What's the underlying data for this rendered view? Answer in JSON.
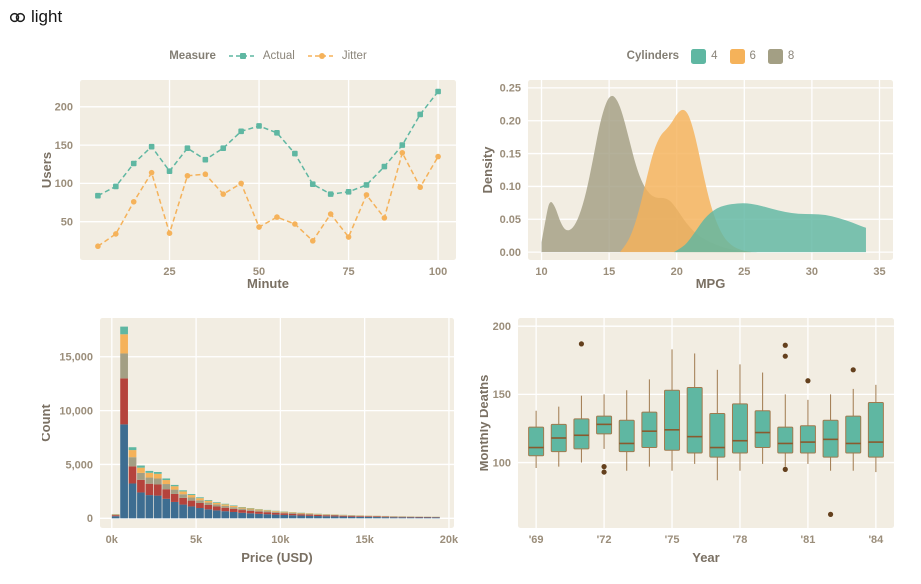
{
  "header": {
    "label": "light",
    "icon": "link-rings-icon"
  },
  "style": {
    "page_bg": "#ffffff",
    "panel": "#f2ede2",
    "grid": "#ffffff",
    "tick": "#9b8e7b",
    "label": "#7a7063",
    "legend_text": "#8b857a"
  },
  "chart_data": [
    {
      "type": "line",
      "title": "Measure",
      "xlabel": "Minute",
      "ylabel": "Users",
      "xlim": [
        0,
        105
      ],
      "ylim": [
        0,
        235
      ],
      "xticks": [
        25,
        50,
        75,
        100
      ],
      "yticks": [
        50,
        100,
        150,
        200
      ],
      "x": [
        5,
        10,
        15,
        20,
        25,
        30,
        35,
        40,
        45,
        50,
        55,
        60,
        65,
        70,
        75,
        80,
        85,
        90,
        95,
        100
      ],
      "series": [
        {
          "name": "Actual",
          "color": "#5fb7a2",
          "marker": "square",
          "values": [
            84,
            96,
            126,
            148,
            116,
            146,
            131,
            146,
            168,
            175,
            166,
            139,
            99,
            86,
            89,
            98,
            122,
            150,
            190,
            220
          ]
        },
        {
          "name": "Jitter",
          "color": "#f5b25a",
          "marker": "circle",
          "values": [
            18,
            34,
            76,
            114,
            35,
            110,
            112,
            86,
            100,
            43,
            56,
            47,
            25,
            60,
            30,
            85,
            55,
            140,
            95,
            135
          ]
        }
      ]
    },
    {
      "type": "density",
      "title": "Cylinders",
      "xlabel": "MPG",
      "ylabel": "Density",
      "xlim": [
        9,
        36
      ],
      "ylim": [
        -0.012,
        0.262
      ],
      "xticks": [
        10,
        15,
        20,
        25,
        30,
        35
      ],
      "yticks": [
        0,
        0.05,
        0.1,
        0.15,
        0.2,
        0.25
      ],
      "ytick_labels": [
        "0.00",
        "0.05",
        "0.10",
        "0.15",
        "0.20",
        "0.25"
      ],
      "series": [
        {
          "name": "4",
          "color": "#5fb7a2",
          "x": [
            19.8,
            20.5,
            21,
            21.5,
            22,
            22.5,
            23,
            23.5,
            24,
            25,
            26,
            27,
            28,
            29,
            30,
            31,
            32,
            33,
            33.6,
            34
          ],
          "y": [
            0,
            0.008,
            0.02,
            0.035,
            0.05,
            0.06,
            0.067,
            0.071,
            0.073,
            0.075,
            0.072,
            0.066,
            0.061,
            0.058,
            0.058,
            0.057,
            0.052,
            0.045,
            0.04,
            0.037
          ]
        },
        {
          "name": "6",
          "color": "#f5b25a",
          "x": [
            15.8,
            16.3,
            16.8,
            17.3,
            17.8,
            18.3,
            18.8,
            19.2,
            19.6,
            20,
            20.4,
            20.8,
            21.2,
            21.6,
            22,
            22.5,
            23,
            23.5,
            24,
            24.5,
            25,
            25.5
          ],
          "y": [
            0,
            0.012,
            0.035,
            0.07,
            0.115,
            0.155,
            0.178,
            0.186,
            0.196,
            0.21,
            0.218,
            0.213,
            0.19,
            0.155,
            0.115,
            0.072,
            0.042,
            0.022,
            0.011,
            0.005,
            0.002,
            0
          ]
        },
        {
          "name": "8",
          "color": "#a39f84",
          "x": [
            10,
            10.3,
            10.6,
            11,
            11.4,
            11.8,
            12.3,
            12.8,
            13.3,
            13.8,
            14.3,
            14.8,
            15.2,
            15.6,
            16,
            16.5,
            17,
            17.5,
            18,
            18.5,
            19,
            19.5,
            20,
            20.5,
            21,
            21.5,
            22,
            23,
            24,
            25,
            26
          ],
          "y": [
            0.015,
            0.05,
            0.08,
            0.07,
            0.045,
            0.032,
            0.035,
            0.055,
            0.09,
            0.14,
            0.195,
            0.23,
            0.24,
            0.232,
            0.21,
            0.17,
            0.13,
            0.103,
            0.088,
            0.082,
            0.083,
            0.079,
            0.066,
            0.05,
            0.037,
            0.027,
            0.02,
            0.01,
            0.004,
            0.001,
            0
          ]
        }
      ]
    },
    {
      "type": "histogram-stacked",
      "xlabel": "Price (USD)",
      "ylabel": "Count",
      "xlim": [
        -700,
        20300
      ],
      "ylim": [
        -900,
        18600
      ],
      "xticks": [
        0,
        5000,
        10000,
        15000,
        20000
      ],
      "xtick_labels": [
        "0k",
        "5k",
        "10k",
        "15k",
        "20k"
      ],
      "yticks": [
        0,
        5000,
        10000,
        15000
      ],
      "ytick_labels": [
        "0",
        "5,000",
        "10,000",
        "15,000"
      ],
      "bin_start": 0,
      "bin_width": 500,
      "totals": [
        400,
        17800,
        6600,
        4900,
        4400,
        4300,
        3700,
        3100,
        2600,
        2250,
        1950,
        1700,
        1500,
        1350,
        1200,
        1050,
        950,
        850,
        780,
        700,
        640,
        580,
        520,
        470,
        430,
        390,
        360,
        330,
        300,
        280,
        260,
        240,
        220,
        200,
        190,
        180,
        170,
        160,
        150
      ],
      "series": [
        {
          "name": "blue",
          "color": "#3d6d91",
          "fraction": 0.49
        },
        {
          "name": "red",
          "color": "#b5433c",
          "fraction": 0.24
        },
        {
          "name": "olive",
          "color": "#a39f84",
          "fraction": 0.13
        },
        {
          "name": "orange",
          "color": "#f5b25a",
          "fraction": 0.1
        },
        {
          "name": "teal",
          "color": "#5fb7a2",
          "fraction": 0.04
        }
      ]
    },
    {
      "type": "box",
      "xlabel": "Year",
      "ylabel": "Monthly Deaths",
      "xlim": [
        1968.2,
        1984.8
      ],
      "ylim": [
        52,
        206
      ],
      "xticks": [
        1969,
        1972,
        1975,
        1978,
        1981,
        1984
      ],
      "xtick_labels": [
        "'69",
        "'72",
        "'75",
        "'78",
        "'81",
        "'84"
      ],
      "yticks": [
        100,
        150,
        200
      ],
      "box_fill": "#5fb7a2",
      "box_stroke": "#a07a4e",
      "median_color": "#8a5a2e",
      "whisker_color": "#a07a4e",
      "outlier_color": "#64401d",
      "items": [
        {
          "year": 1969,
          "lo": 96,
          "q1": 105,
          "med": 111,
          "q3": 126,
          "hi": 138,
          "outliers": []
        },
        {
          "year": 1970,
          "lo": 97,
          "q1": 108,
          "med": 118,
          "q3": 128,
          "hi": 141,
          "outliers": []
        },
        {
          "year": 1971,
          "lo": 100,
          "q1": 110,
          "med": 120,
          "q3": 132,
          "hi": 149,
          "outliers": [
            187
          ]
        },
        {
          "year": 1972,
          "lo": 110,
          "q1": 121,
          "med": 128,
          "q3": 134,
          "hi": 150,
          "outliers": [
            97,
            93
          ]
        },
        {
          "year": 1973,
          "lo": 94,
          "q1": 108,
          "med": 114,
          "q3": 131,
          "hi": 153,
          "outliers": []
        },
        {
          "year": 1974,
          "lo": 97,
          "q1": 111,
          "med": 123,
          "q3": 137,
          "hi": 161,
          "outliers": []
        },
        {
          "year": 1975,
          "lo": 94,
          "q1": 109,
          "med": 124,
          "q3": 153,
          "hi": 183,
          "outliers": []
        },
        {
          "year": 1976,
          "lo": 99,
          "q1": 107,
          "med": 119,
          "q3": 155,
          "hi": 180,
          "outliers": []
        },
        {
          "year": 1977,
          "lo": 87,
          "q1": 104,
          "med": 111,
          "q3": 136,
          "hi": 168,
          "outliers": []
        },
        {
          "year": 1978,
          "lo": 94,
          "q1": 107,
          "med": 116,
          "q3": 143,
          "hi": 172,
          "outliers": []
        },
        {
          "year": 1979,
          "lo": 99,
          "q1": 111,
          "med": 122,
          "q3": 138,
          "hi": 166,
          "outliers": []
        },
        {
          "year": 1980,
          "lo": 97,
          "q1": 107,
          "med": 114,
          "q3": 126,
          "hi": 150,
          "outliers": [
            186,
            178,
            95
          ]
        },
        {
          "year": 1981,
          "lo": 99,
          "q1": 107,
          "med": 115,
          "q3": 127,
          "hi": 146,
          "outliers": [
            160
          ]
        },
        {
          "year": 1982,
          "lo": 94,
          "q1": 104,
          "med": 117,
          "q3": 131,
          "hi": 150,
          "outliers": [
            62
          ]
        },
        {
          "year": 1983,
          "lo": 94,
          "q1": 107,
          "med": 114,
          "q3": 134,
          "hi": 154,
          "outliers": [
            168
          ]
        },
        {
          "year": 1984,
          "lo": 93,
          "q1": 104,
          "med": 115,
          "q3": 144,
          "hi": 157,
          "outliers": []
        }
      ]
    }
  ]
}
